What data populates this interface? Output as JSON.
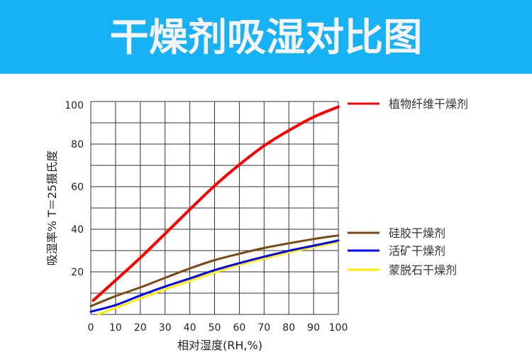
{
  "chart_data": {
    "type": "line",
    "title": "干燥剂吸湿对比图",
    "xlabel": "相对湿度(RH,%)",
    "ylabel": "吸湿率% T＝25摄氏度",
    "xlim": [
      0,
      100
    ],
    "ylim": [
      0,
      100
    ],
    "xticks": [
      "0",
      "10",
      "20",
      "30",
      "40",
      "50",
      "60",
      "70",
      "80",
      "90",
      "100"
    ],
    "yticks": [
      "20",
      "40",
      "60",
      "80",
      "100"
    ],
    "xtick_values": [
      0,
      10,
      20,
      30,
      40,
      50,
      60,
      70,
      80,
      90,
      100
    ],
    "ytick_values": [
      20,
      40,
      60,
      80,
      100
    ],
    "grid": true,
    "legend_placement": "right",
    "series": [
      {
        "name": "植物纤维干燥剂",
        "color": "#ff0000",
        "x": [
          1,
          10,
          20,
          30,
          40,
          50,
          60,
          70,
          80,
          90,
          100
        ],
        "y": [
          6.6,
          16,
          26.6,
          37.9,
          49.3,
          60.4,
          70.3,
          79.2,
          86.4,
          92.7,
          97.5
        ]
      },
      {
        "name": "硅胶干燥剂",
        "color": "#7a4a14",
        "x": [
          0,
          10,
          20,
          30,
          40,
          50,
          60,
          70,
          80,
          90,
          100
        ],
        "y": [
          3.9,
          8.6,
          12.7,
          17.2,
          21.6,
          25.5,
          28.5,
          31.2,
          33.4,
          35.4,
          37.1
        ]
      },
      {
        "name": "活矿干燥剂",
        "color": "#0000ff",
        "x": [
          0,
          10,
          20,
          30,
          40,
          50,
          60,
          70,
          80,
          90,
          100
        ],
        "y": [
          1.3,
          4.4,
          8.9,
          13.1,
          16.9,
          20.8,
          24.1,
          27.1,
          29.9,
          32.3,
          34.7
        ]
      },
      {
        "name": "蒙脱石干燥剂",
        "color": "#ffee00",
        "x": [
          3,
          10,
          20,
          30,
          40,
          50,
          60,
          70,
          80,
          90,
          100
        ],
        "y": [
          0,
          3.1,
          7.5,
          11.8,
          15.8,
          19.7,
          23.3,
          26.2,
          29.1,
          31.6,
          34
        ]
      }
    ]
  }
}
